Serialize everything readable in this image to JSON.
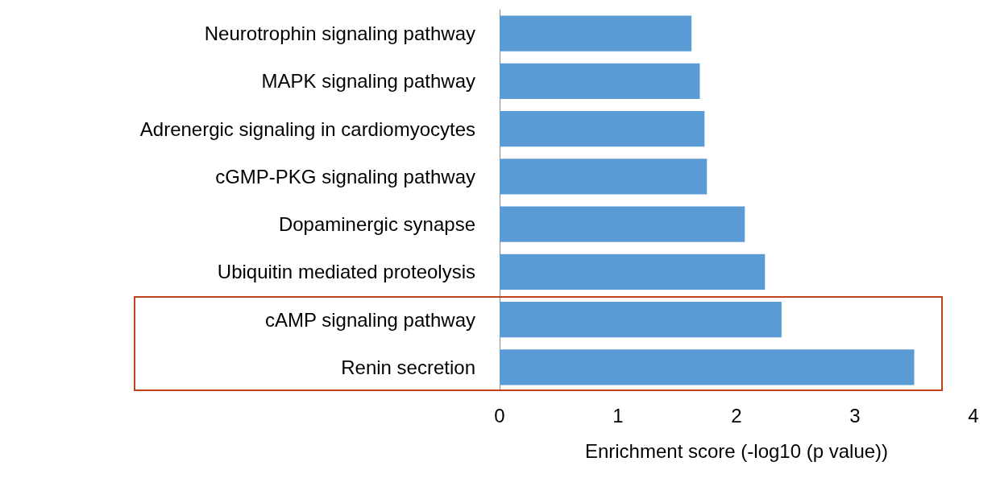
{
  "chart_data": {
    "type": "bar",
    "orientation": "horizontal",
    "xlabel": "Enrichment score (-log10 (p value))",
    "categories": [
      "Neurotrophin signaling pathway",
      "MAPK signaling pathway",
      "Adrenergic signaling in cardiomyocytes",
      "cGMP-PKG signaling pathway",
      "Dopaminergic synapse",
      "Ubiquitin mediated proteolysis",
      "cAMP signaling pathway",
      "Renin secretion"
    ],
    "values": [
      1.62,
      1.69,
      1.73,
      1.75,
      2.07,
      2.24,
      2.38,
      3.5
    ],
    "color": "#5b9bd5",
    "xlim": [
      0,
      4
    ],
    "xticks": [
      0,
      1,
      2,
      3,
      4
    ],
    "grid": false
  }
}
